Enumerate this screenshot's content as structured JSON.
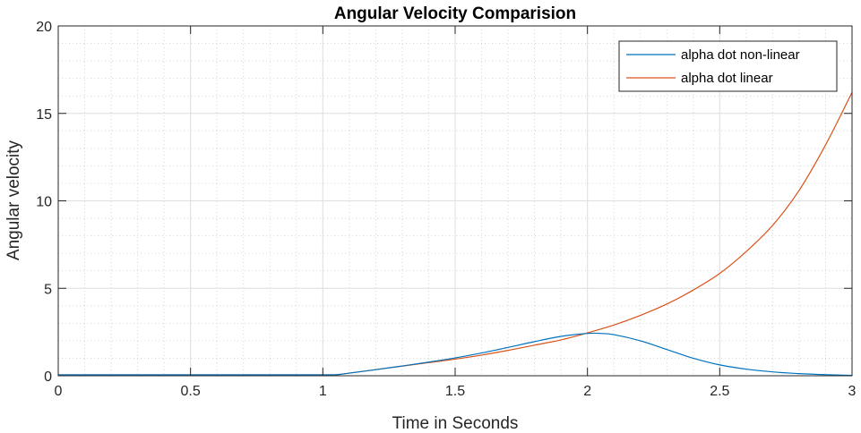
{
  "chart_data": {
    "type": "line",
    "title": "Angular Velocity Comparision",
    "xlabel": "Time in Seconds",
    "ylabel": "Angular velocity",
    "xlim": [
      0,
      3
    ],
    "ylim": [
      0,
      20
    ],
    "xticks": [
      0,
      0.5,
      1,
      1.5,
      2,
      2.5,
      3
    ],
    "xtick_labels": [
      "0",
      "0.5",
      "1",
      "1.5",
      "2",
      "2.5",
      "3"
    ],
    "yticks": [
      0,
      5,
      10,
      15,
      20
    ],
    "ytick_labels": [
      "0",
      "5",
      "10",
      "15",
      "20"
    ],
    "grid": true,
    "minor_grid": true,
    "legend_position": "top-right",
    "series": [
      {
        "name": "alpha dot non-linear",
        "color": "#0072BD",
        "x": [
          0,
          0.5,
          1.0,
          1.05,
          1.1,
          1.2,
          1.3,
          1.4,
          1.5,
          1.6,
          1.7,
          1.8,
          1.9,
          2.0,
          2.05,
          2.1,
          2.2,
          2.3,
          2.4,
          2.5,
          2.6,
          2.7,
          2.8,
          2.9,
          3.0
        ],
        "y": [
          0.05,
          0.05,
          0.05,
          0.06,
          0.15,
          0.35,
          0.56,
          0.78,
          1.02,
          1.3,
          1.62,
          1.95,
          2.25,
          2.42,
          2.42,
          2.35,
          2.0,
          1.5,
          1.0,
          0.62,
          0.38,
          0.22,
          0.12,
          0.06,
          0.02
        ]
      },
      {
        "name": "alpha dot linear",
        "color": "#D95319",
        "x": [
          0,
          0.5,
          1.0,
          1.05,
          1.1,
          1.2,
          1.3,
          1.4,
          1.5,
          1.6,
          1.7,
          1.8,
          1.9,
          2.0,
          2.1,
          2.2,
          2.3,
          2.4,
          2.5,
          2.6,
          2.7,
          2.8,
          2.9,
          3.0
        ],
        "y": [
          0.05,
          0.05,
          0.05,
          0.06,
          0.15,
          0.35,
          0.55,
          0.75,
          0.95,
          1.18,
          1.45,
          1.75,
          2.05,
          2.45,
          2.9,
          3.45,
          4.1,
          4.9,
          5.85,
          7.1,
          8.6,
          10.6,
          13.2,
          16.2
        ]
      }
    ]
  }
}
